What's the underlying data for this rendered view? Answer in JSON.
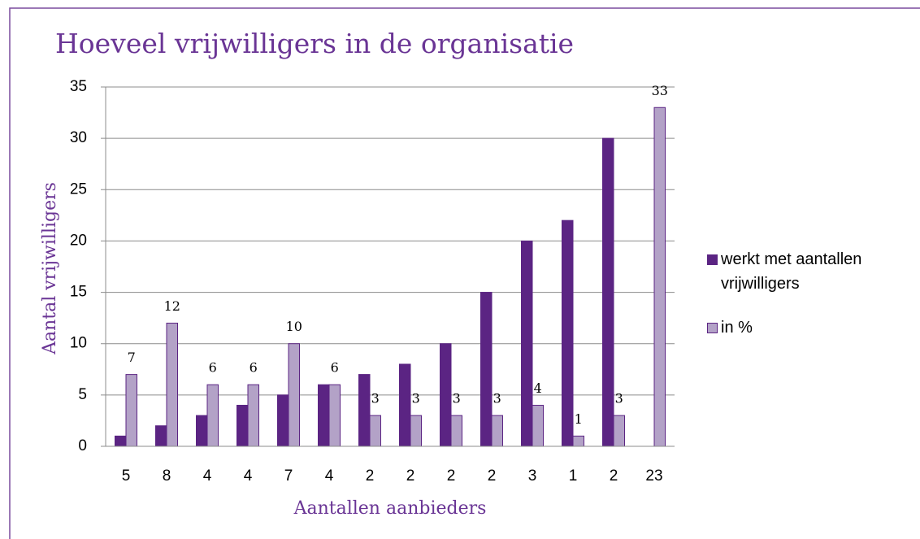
{
  "chart_data": {
    "type": "bar",
    "title": "Hoeveel vrijwilligers in de organisatie",
    "x_label": "Aantallen aanbieders",
    "y_label": "Aantal vrijwilligers",
    "categories": [
      "5",
      "8",
      "4",
      "4",
      "7",
      "4",
      "2",
      "2",
      "2",
      "2",
      "3",
      "1",
      "2",
      "23"
    ],
    "series": [
      {
        "name": "werkt met aantallen vrijwilligers",
        "color": "#5b2483",
        "data_labels": false,
        "values": [
          1,
          2,
          3,
          4,
          5,
          6,
          7,
          8,
          10,
          15,
          20,
          22,
          30,
          null
        ]
      },
      {
        "name": "in %",
        "color": "#b3a2c7",
        "data_labels": true,
        "values": [
          7,
          12,
          6,
          6,
          10,
          6,
          3,
          3,
          3,
          3,
          4,
          1,
          3,
          33
        ]
      }
    ],
    "ylim": [
      0,
      35
    ],
    "yticks": [
      0,
      5,
      10,
      15,
      20,
      25,
      30,
      35
    ],
    "grid": true,
    "legend": "right"
  }
}
